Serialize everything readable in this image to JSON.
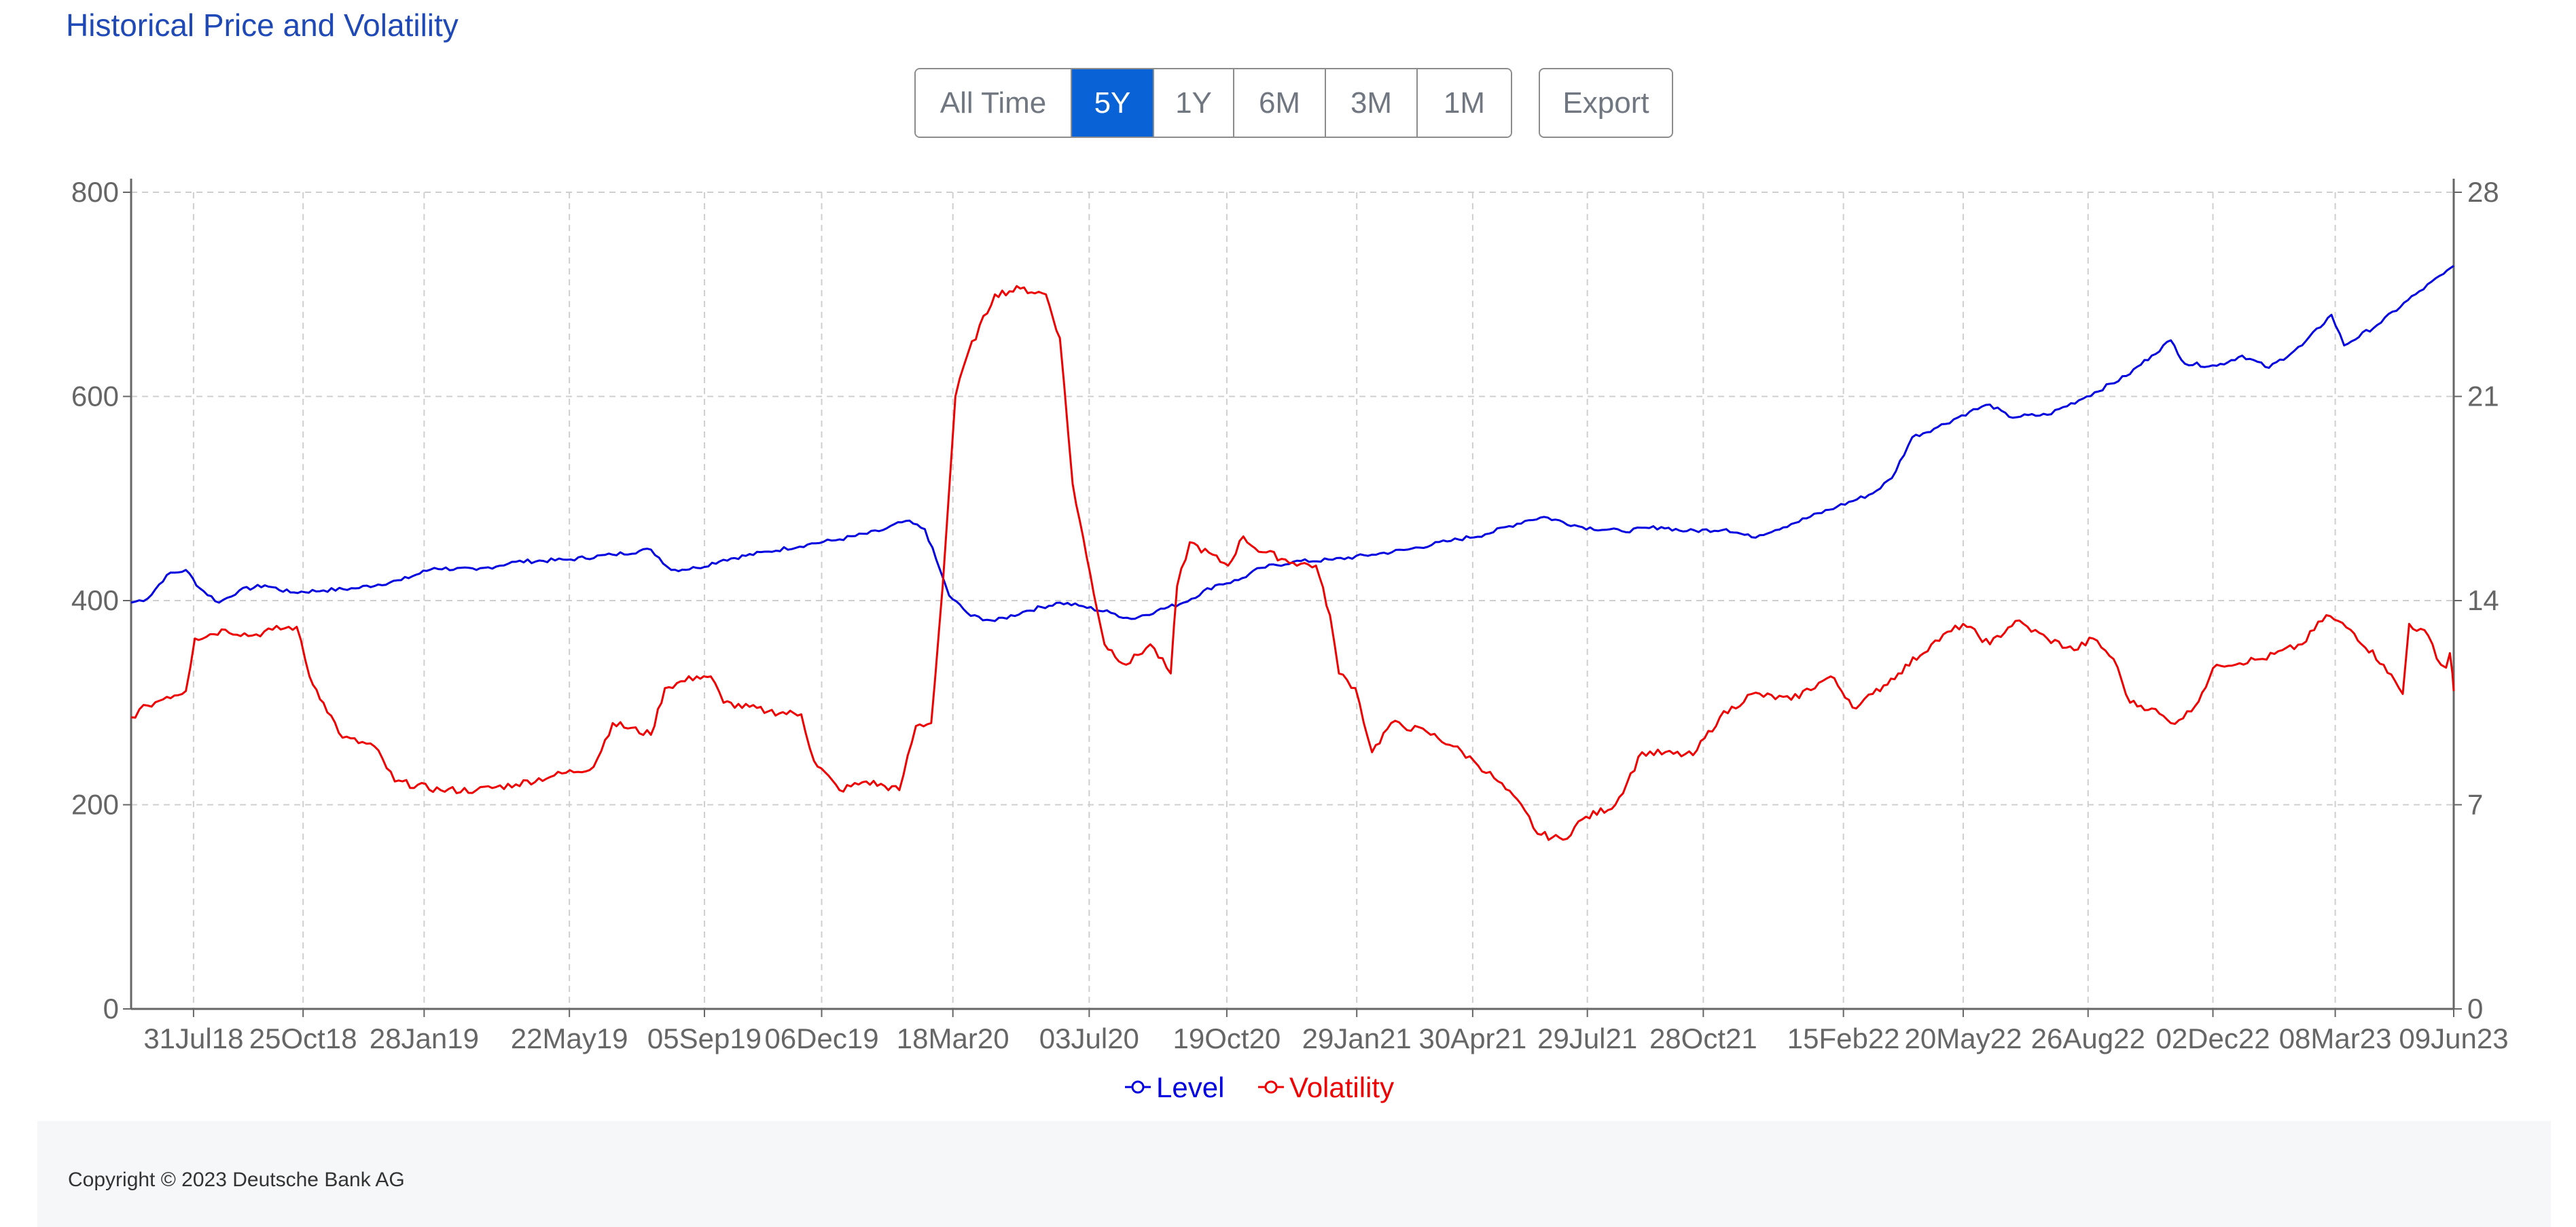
{
  "title": "Historical Price and Volatility",
  "range_buttons": [
    {
      "label": "All Time",
      "active": false
    },
    {
      "label": "5Y",
      "active": true
    },
    {
      "label": "1Y",
      "active": false
    },
    {
      "label": "6M",
      "active": false
    },
    {
      "label": "3M",
      "active": false
    },
    {
      "label": "1M",
      "active": false
    }
  ],
  "export_label": "Export",
  "footer": {
    "copyright": "Copyright © 2023 Deutsche Bank AG"
  },
  "colors": {
    "level": "#0000e0",
    "volatility": "#ee0000",
    "active_button": "#0a63d6",
    "title": "#1f49b6"
  },
  "chart_data": {
    "type": "line",
    "x_tick_labels": [
      "31Jul18",
      "25Oct18",
      "28Jan19",
      "22May19",
      "05Sep19",
      "06Dec19",
      "18Mar20",
      "03Jul20",
      "19Oct20",
      "29Jan21",
      "30Apr21",
      "29Jul21",
      "28Oct21",
      "15Feb22",
      "20May22",
      "26Aug22",
      "02Dec22",
      "08Mar23",
      "09Jun23"
    ],
    "x_range": [
      "2018-06-12",
      "2023-06-09"
    ],
    "y_left": {
      "range": [
        0,
        800
      ],
      "ticks": [
        0,
        200,
        400,
        600,
        800
      ]
    },
    "y_right": {
      "range": [
        0,
        28
      ],
      "ticks": [
        0,
        7,
        14,
        21,
        28
      ]
    },
    "grid": true,
    "legend_position": "bottom-center",
    "series": [
      {
        "name": "Level",
        "axis": "left",
        "color": "#0000e0",
        "points": [
          [
            "2018-06-12",
            398
          ],
          [
            "2018-06-25",
            402
          ],
          [
            "2018-07-10",
            425
          ],
          [
            "2018-07-25",
            430
          ],
          [
            "2018-08-05",
            412
          ],
          [
            "2018-08-20",
            398
          ],
          [
            "2018-09-05",
            410
          ],
          [
            "2018-09-25",
            415
          ],
          [
            "2018-10-15",
            408
          ],
          [
            "2018-11-10",
            410
          ],
          [
            "2018-12-05",
            412
          ],
          [
            "2019-01-10",
            420
          ],
          [
            "2019-02-05",
            432
          ],
          [
            "2019-03-10",
            430
          ],
          [
            "2019-04-10",
            438
          ],
          [
            "2019-05-20",
            440
          ],
          [
            "2019-06-25",
            445
          ],
          [
            "2019-07-25",
            450
          ],
          [
            "2019-08-10",
            430
          ],
          [
            "2019-08-30",
            432
          ],
          [
            "2019-09-20",
            440
          ],
          [
            "2019-10-25",
            448
          ],
          [
            "2019-11-25",
            455
          ],
          [
            "2019-12-20",
            460
          ],
          [
            "2020-01-20",
            468
          ],
          [
            "2020-02-10",
            478
          ],
          [
            "2020-02-25",
            470
          ],
          [
            "2020-03-05",
            440
          ],
          [
            "2020-03-15",
            405
          ],
          [
            "2020-04-01",
            385
          ],
          [
            "2020-04-20",
            380
          ],
          [
            "2020-05-15",
            390
          ],
          [
            "2020-06-10",
            398
          ],
          [
            "2020-06-25",
            395
          ],
          [
            "2020-07-20",
            388
          ],
          [
            "2020-08-05",
            382
          ],
          [
            "2020-08-25",
            390
          ],
          [
            "2020-09-15",
            398
          ],
          [
            "2020-10-10",
            415
          ],
          [
            "2020-10-28",
            420
          ],
          [
            "2020-11-15",
            432
          ],
          [
            "2020-12-10",
            438
          ],
          [
            "2021-01-10",
            440
          ],
          [
            "2021-02-10",
            445
          ],
          [
            "2021-03-10",
            450
          ],
          [
            "2021-04-10",
            458
          ],
          [
            "2021-05-10",
            465
          ],
          [
            "2021-06-10",
            478
          ],
          [
            "2021-06-25",
            482
          ],
          [
            "2021-07-25",
            472
          ],
          [
            "2021-08-25",
            468
          ],
          [
            "2021-09-25",
            472
          ],
          [
            "2021-10-15",
            468
          ],
          [
            "2021-11-15",
            470
          ],
          [
            "2021-12-05",
            462
          ],
          [
            "2022-01-05",
            475
          ],
          [
            "2022-02-10",
            492
          ],
          [
            "2022-03-10",
            505
          ],
          [
            "2022-03-25",
            520
          ],
          [
            "2022-04-10",
            560
          ],
          [
            "2022-04-30",
            570
          ],
          [
            "2022-05-25",
            585
          ],
          [
            "2022-06-10",
            592
          ],
          [
            "2022-06-25",
            580
          ],
          [
            "2022-07-25",
            582
          ],
          [
            "2022-08-25",
            600
          ],
          [
            "2022-09-25",
            620
          ],
          [
            "2022-10-15",
            640
          ],
          [
            "2022-10-30",
            655
          ],
          [
            "2022-11-10",
            632
          ],
          [
            "2022-12-05",
            630
          ],
          [
            "2022-12-25",
            640
          ],
          [
            "2023-01-15",
            628
          ],
          [
            "2023-02-10",
            650
          ],
          [
            "2023-03-05",
            680
          ],
          [
            "2023-03-15",
            650
          ],
          [
            "2023-04-10",
            670
          ],
          [
            "2023-05-10",
            700
          ],
          [
            "2023-06-01",
            720
          ],
          [
            "2023-06-09",
            728
          ]
        ]
      },
      {
        "name": "Volatility",
        "axis": "right",
        "color": "#ee0000",
        "points": [
          [
            "2018-06-12",
            10.0
          ],
          [
            "2018-06-25",
            10.4
          ],
          [
            "2018-07-10",
            10.7
          ],
          [
            "2018-07-25",
            10.9
          ],
          [
            "2018-08-01",
            12.7
          ],
          [
            "2018-08-25",
            13.0
          ],
          [
            "2018-09-15",
            12.8
          ],
          [
            "2018-10-01",
            13.0
          ],
          [
            "2018-10-20",
            13.1
          ],
          [
            "2018-10-30",
            11.4
          ],
          [
            "2018-11-10",
            10.5
          ],
          [
            "2018-11-25",
            9.3
          ],
          [
            "2018-12-20",
            9.0
          ],
          [
            "2019-01-05",
            7.8
          ],
          [
            "2019-02-10",
            7.5
          ],
          [
            "2019-03-10",
            7.5
          ],
          [
            "2019-04-10",
            7.7
          ],
          [
            "2019-05-10",
            8.0
          ],
          [
            "2019-06-10",
            8.3
          ],
          [
            "2019-06-25",
            9.8
          ],
          [
            "2019-07-25",
            9.4
          ],
          [
            "2019-08-05",
            11.0
          ],
          [
            "2019-08-30",
            11.4
          ],
          [
            "2019-09-10",
            11.4
          ],
          [
            "2019-09-20",
            10.5
          ],
          [
            "2019-10-25",
            10.2
          ],
          [
            "2019-11-20",
            10.1
          ],
          [
            "2019-11-30",
            8.5
          ],
          [
            "2019-12-20",
            7.5
          ],
          [
            "2020-01-10",
            7.8
          ],
          [
            "2020-02-05",
            7.5
          ],
          [
            "2020-02-18",
            9.7
          ],
          [
            "2020-03-01",
            9.8
          ],
          [
            "2020-03-10",
            14.5
          ],
          [
            "2020-03-20",
            21.0
          ],
          [
            "2020-03-30",
            22.5
          ],
          [
            "2020-04-20",
            24.5
          ],
          [
            "2020-05-10",
            24.7
          ],
          [
            "2020-05-30",
            24.5
          ],
          [
            "2020-06-10",
            23.0
          ],
          [
            "2020-06-20",
            18.0
          ],
          [
            "2020-07-01",
            15.5
          ],
          [
            "2020-07-15",
            12.5
          ],
          [
            "2020-08-01",
            11.8
          ],
          [
            "2020-08-20",
            12.5
          ],
          [
            "2020-09-05",
            11.5
          ],
          [
            "2020-09-10",
            14.5
          ],
          [
            "2020-09-20",
            16.0
          ],
          [
            "2020-10-20",
            15.2
          ],
          [
            "2020-11-01",
            16.2
          ],
          [
            "2020-11-10",
            15.8
          ],
          [
            "2020-12-10",
            15.3
          ],
          [
            "2020-12-28",
            15.2
          ],
          [
            "2021-01-08",
            13.5
          ],
          [
            "2021-01-15",
            11.5
          ],
          [
            "2021-01-28",
            11.0
          ],
          [
            "2021-02-10",
            8.8
          ],
          [
            "2021-02-25",
            9.8
          ],
          [
            "2021-03-25",
            9.5
          ],
          [
            "2021-04-15",
            9.0
          ],
          [
            "2021-05-01",
            8.5
          ],
          [
            "2021-05-20",
            7.8
          ],
          [
            "2021-06-10",
            6.8
          ],
          [
            "2021-06-20",
            6.0
          ],
          [
            "2021-07-10",
            5.8
          ],
          [
            "2021-07-25",
            6.5
          ],
          [
            "2021-08-20",
            7.0
          ],
          [
            "2021-09-10",
            8.8
          ],
          [
            "2021-10-20",
            8.7
          ],
          [
            "2021-11-10",
            10.0
          ],
          [
            "2021-12-05",
            10.8
          ],
          [
            "2022-01-05",
            10.6
          ],
          [
            "2022-02-05",
            11.4
          ],
          [
            "2022-02-25",
            10.3
          ],
          [
            "2022-03-10",
            10.8
          ],
          [
            "2022-03-30",
            11.5
          ],
          [
            "2022-04-25",
            12.5
          ],
          [
            "2022-05-20",
            13.2
          ],
          [
            "2022-06-10",
            12.5
          ],
          [
            "2022-06-30",
            13.3
          ],
          [
            "2022-07-25",
            12.7
          ],
          [
            "2022-08-15",
            12.3
          ],
          [
            "2022-08-30",
            12.7
          ],
          [
            "2022-09-15",
            12.0
          ],
          [
            "2022-09-28",
            10.5
          ],
          [
            "2022-10-15",
            10.3
          ],
          [
            "2022-10-30",
            9.8
          ],
          [
            "2022-11-15",
            10.2
          ],
          [
            "2022-12-05",
            11.8
          ],
          [
            "2023-01-10",
            12.0
          ],
          [
            "2023-02-10",
            12.5
          ],
          [
            "2023-03-01",
            13.5
          ],
          [
            "2023-03-20",
            13.0
          ],
          [
            "2023-04-15",
            11.8
          ],
          [
            "2023-04-30",
            10.8
          ],
          [
            "2023-05-05",
            13.2
          ],
          [
            "2023-05-20",
            12.8
          ],
          [
            "2023-05-30",
            11.8
          ],
          [
            "2023-06-03",
            11.7
          ],
          [
            "2023-06-06",
            12.2
          ],
          [
            "2023-06-08",
            11.5
          ],
          [
            "2023-06-09",
            10.9
          ]
        ]
      }
    ]
  }
}
